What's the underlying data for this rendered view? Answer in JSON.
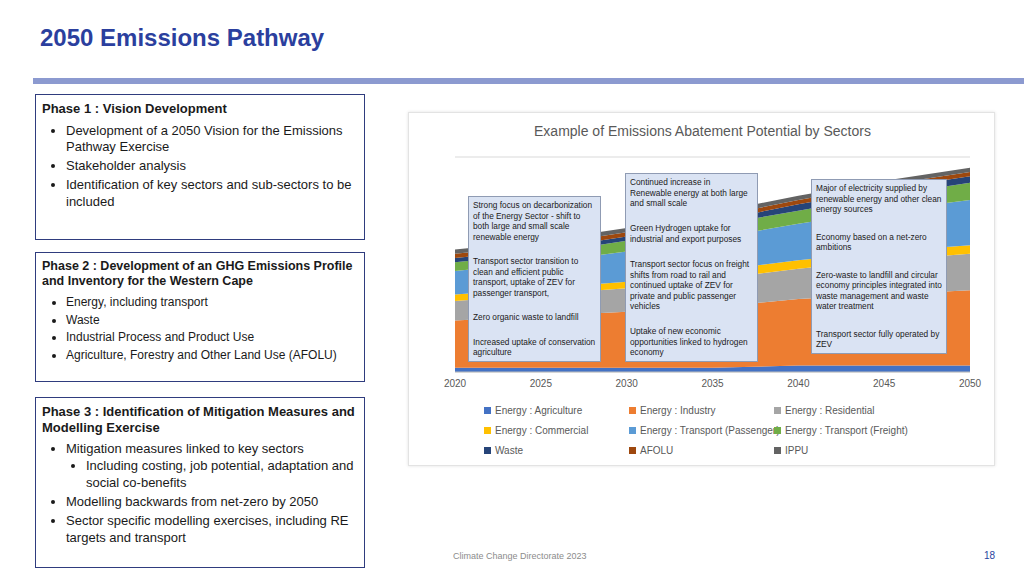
{
  "title": "2050 Emissions Pathway",
  "phases": [
    {
      "heading": "Phase 1 :  Vision Development",
      "bullets": [
        {
          "text": "Development of a 2050 Vision for the Emissions Pathway Exercise"
        },
        {
          "text": "Stakeholder analysis"
        },
        {
          "text": "Identification of key sectors and sub-sectors to be included"
        }
      ]
    },
    {
      "heading": "Phase 2 :  Development of an GHG Emissions Profile and Inventory for the Western Cape",
      "bullets": [
        {
          "text": "Energy, including transport"
        },
        {
          "text": "Waste"
        },
        {
          "text": "Industrial Process and Product Use"
        },
        {
          "text": "Agriculture, Forestry and Other Land Use (AFOLU)"
        }
      ]
    },
    {
      "heading": "Phase 3 :  Identification of Mitigation Measures and Modelling Exercise",
      "bullets": [
        {
          "text": "Mitigation measures linked to key sectors",
          "sub": [
            "Including costing, job potential, adaptation and social co-benefits"
          ]
        },
        {
          "text": "Modelling backwards from net-zero by 2050"
        },
        {
          "text": "Sector specific modelling exercises, including RE targets and transport"
        }
      ]
    }
  ],
  "chart_data": {
    "type": "area",
    "title": "Example of Emissions Abatement Potential by Sectors",
    "stacked": true,
    "grid": true,
    "legend": "bottom",
    "tick_labels": "x",
    "x": [
      2020,
      2025,
      2030,
      2035,
      2040,
      2045,
      2050
    ],
    "xlim": [
      2020,
      2050
    ],
    "xticks": [
      2020,
      2025,
      2030,
      2035,
      2040,
      2045,
      2050
    ],
    "ylim": [
      0,
      100
    ],
    "yticks": [
      0,
      20,
      40,
      60,
      80,
      100
    ],
    "series": [
      {
        "name": "Energy : Agriculture",
        "color": "#4472c4",
        "values": [
          2,
          2,
          2,
          2,
          3,
          3,
          3
        ]
      },
      {
        "name": "Energy : Industry",
        "color": "#ed7d31",
        "values": [
          22,
          24,
          26,
          28,
          31,
          33,
          35
        ]
      },
      {
        "name": "Energy : Residential",
        "color": "#a5a5a5",
        "values": [
          9,
          10,
          11,
          13,
          14,
          16,
          17
        ]
      },
      {
        "name": "Energy : Commercial",
        "color": "#ffc000",
        "values": [
          3,
          3,
          3,
          4,
          4,
          4,
          4
        ]
      },
      {
        "name": "Energy : Transport (Passenger)",
        "color": "#5b9bd5",
        "values": [
          11,
          12,
          14,
          15,
          17,
          19,
          21
        ]
      },
      {
        "name": "Energy : Transport (Freight)",
        "color": "#70ad47",
        "values": [
          4,
          4,
          5,
          6,
          6,
          7,
          8
        ]
      },
      {
        "name": "Waste",
        "color": "#264478",
        "values": [
          2,
          2,
          2,
          2,
          3,
          3,
          3
        ]
      },
      {
        "name": "AFOLU",
        "color": "#9e480e",
        "values": [
          2,
          2,
          2,
          2,
          2,
          2,
          2
        ]
      },
      {
        "name": "IPPU",
        "color": "#636363",
        "values": [
          2,
          2,
          2,
          2,
          2,
          2,
          2
        ]
      }
    ],
    "annotations": [
      [
        "Strong focus on decarbonization of the Energy Sector - shift to both large and small scale renewable energy",
        "Transport sector transition to clean and efficient public transport, uptake of ZEV for passenger transport,",
        "Zero organic waste to landfill",
        "Increased uptake of conservation agriculture"
      ],
      [
        "Continued increase in Renewable energy at both large and small scale",
        "Green Hydrogen uptake for industrial and export purposes",
        "Transport sector focus on freight shifts from road to rail and continued uptake of ZEV for private and public passenger vehicles",
        "Uptake of new economic opportunities linked to hydrogen economy"
      ],
      [
        "Major of electricity supplied by renewable energy and other clean energy sources",
        "Economy based on a net-zero ambitions",
        "Zero-waste to landfill and circular economy principles integrated into waste management and waste water treatment",
        "Transport sector fully operated by ZEV"
      ]
    ]
  },
  "footer": "Climate Change Directorate 2023",
  "page_number": "18"
}
